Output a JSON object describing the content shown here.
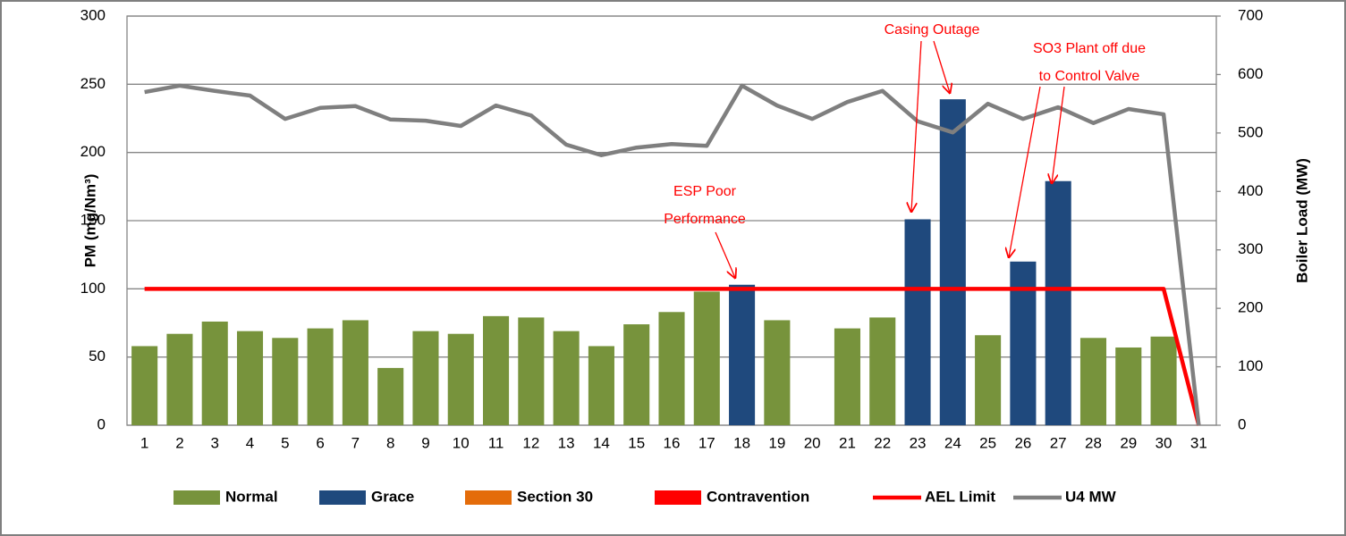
{
  "chart_data": {
    "type": "bar-line",
    "ylabel": "PM (mg/Nm³)",
    "y2label": "Boiler Load (MW)",
    "categories": [
      "1",
      "2",
      "3",
      "4",
      "5",
      "6",
      "7",
      "8",
      "9",
      "10",
      "11",
      "12",
      "13",
      "14",
      "15",
      "16",
      "17",
      "18",
      "19",
      "20",
      "21",
      "22",
      "23",
      "24",
      "25",
      "26",
      "27",
      "28",
      "29",
      "30",
      "31"
    ],
    "ylim": [
      0,
      300
    ],
    "yticks": [
      0,
      50,
      100,
      150,
      200,
      250,
      300
    ],
    "y2lim": [
      0,
      700
    ],
    "y2ticks": [
      0,
      100,
      200,
      300,
      400,
      500,
      600,
      700
    ],
    "grid": true,
    "series": [
      {
        "name": "Normal",
        "kind": "bar",
        "color": "#77933c",
        "values": [
          58,
          67,
          76,
          69,
          64,
          71,
          77,
          42,
          69,
          67,
          80,
          79,
          69,
          58,
          74,
          83,
          98,
          null,
          77,
          null,
          71,
          79,
          null,
          null,
          66,
          null,
          null,
          64,
          57,
          65,
          null
        ]
      },
      {
        "name": "Grace",
        "kind": "bar",
        "color": "#1f497d",
        "values": [
          null,
          null,
          null,
          null,
          null,
          null,
          null,
          null,
          null,
          null,
          null,
          null,
          null,
          null,
          null,
          null,
          null,
          103,
          null,
          null,
          null,
          null,
          151,
          239,
          null,
          120,
          179,
          null,
          null,
          null,
          null
        ]
      },
      {
        "name": "Section 30",
        "kind": "bar",
        "color": "#e46c0a",
        "values": [
          null,
          null,
          null,
          null,
          null,
          null,
          null,
          null,
          null,
          null,
          null,
          null,
          null,
          null,
          null,
          null,
          null,
          null,
          null,
          null,
          null,
          null,
          null,
          null,
          null,
          null,
          null,
          null,
          null,
          null,
          null
        ]
      },
      {
        "name": "Contravention",
        "kind": "bar",
        "color": "#ff0000",
        "values": [
          null,
          null,
          null,
          null,
          null,
          null,
          null,
          null,
          null,
          null,
          null,
          null,
          null,
          null,
          null,
          null,
          null,
          null,
          null,
          null,
          null,
          null,
          null,
          null,
          null,
          null,
          null,
          null,
          null,
          null,
          null
        ]
      },
      {
        "name": "AEL Limit",
        "kind": "line",
        "color": "#ff0000",
        "values": [
          100,
          100,
          100,
          100,
          100,
          100,
          100,
          100,
          100,
          100,
          100,
          100,
          100,
          100,
          100,
          100,
          100,
          100,
          100,
          100,
          100,
          100,
          100,
          100,
          100,
          100,
          100,
          100,
          100,
          100,
          0
        ]
      },
      {
        "name": "U4 MW",
        "kind": "line",
        "axis": "y2",
        "color": "#7f7f7f",
        "values": [
          570,
          581,
          572,
          564,
          524,
          543,
          546,
          523,
          521,
          512,
          547,
          530,
          480,
          462,
          475,
          481,
          478,
          581,
          547,
          524,
          553,
          572,
          520,
          501,
          550,
          524,
          544,
          517,
          541,
          532,
          0
        ]
      }
    ],
    "annotations": [
      {
        "lines": [
          "ESP Poor",
          "Performance"
        ]
      },
      {
        "lines": [
          "Casing Outage"
        ]
      },
      {
        "lines": [
          "SO3 Plant off due",
          "to Control Valve"
        ]
      }
    ]
  }
}
